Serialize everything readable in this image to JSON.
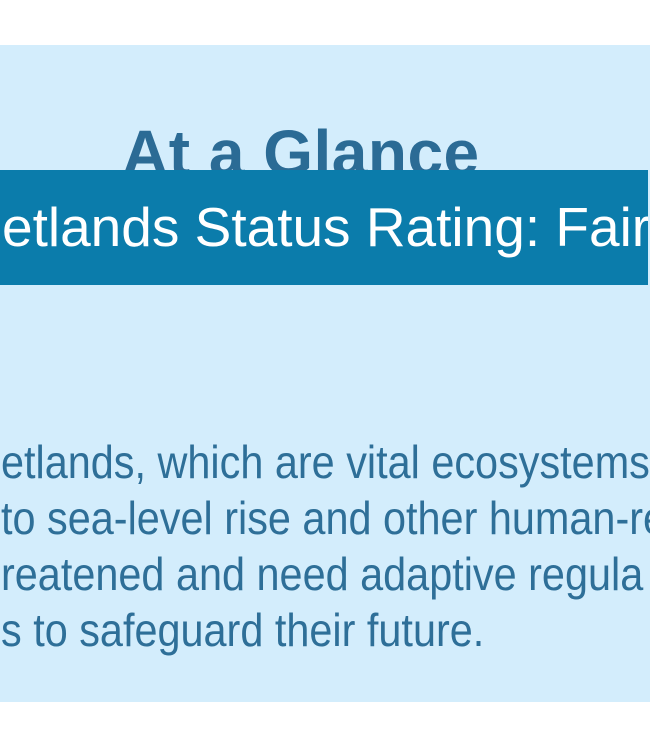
{
  "colors": {
    "page_background": "#ffffff",
    "panel_background": "#d3edfc",
    "banner_background": "#0b7cab",
    "banner_text_color": "#ffffff",
    "title_color": "#2b6b95",
    "body_text_color": "#2e6f98"
  },
  "glance": {
    "title": "At a Glance",
    "banner": {
      "text": "etlands Status Rating: Fair"
    },
    "summary": {
      "lines": [
        "etlands, which are vital ecosystems",
        "to sea-level rise and other human-re",
        "reatened and need adaptive regula",
        "s to safeguard their future."
      ]
    }
  }
}
